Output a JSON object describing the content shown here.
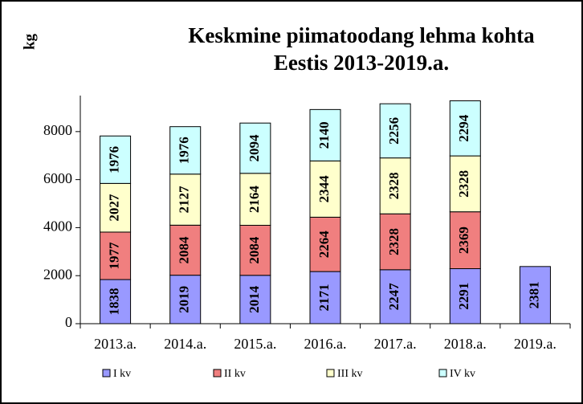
{
  "chart_data": {
    "type": "stacked_bar",
    "title": [
      "Keskmine piimatoodang  lehma kohta",
      "Eestis 2013-2019.a."
    ],
    "y_label": "kg",
    "categories": [
      "2013.a.",
      "2014.a.",
      "2015.a.",
      "2016.a.",
      "2017.a.",
      "2018.a.",
      "2019.a."
    ],
    "series": [
      {
        "name": "I kv",
        "color": "#9999ff",
        "values": [
          1838,
          2019,
          2014,
          2171,
          2247,
          2291,
          2381
        ]
      },
      {
        "name": "II kv",
        "color": "#f07f7f",
        "values": [
          1977,
          2084,
          2084,
          2264,
          2328,
          2369,
          null
        ]
      },
      {
        "name": "III kv",
        "color": "#ffffcc",
        "values": [
          2027,
          2127,
          2164,
          2344,
          2328,
          2328,
          null
        ]
      },
      {
        "name": "IV kv",
        "color": "#ccffff",
        "values": [
          1976,
          1976,
          2094,
          2140,
          2256,
          2294,
          null
        ]
      }
    ],
    "ylim": [
      0,
      9500
    ],
    "yticks": [
      0,
      2000,
      4000,
      6000,
      8000
    ],
    "legend": "bottom"
  }
}
